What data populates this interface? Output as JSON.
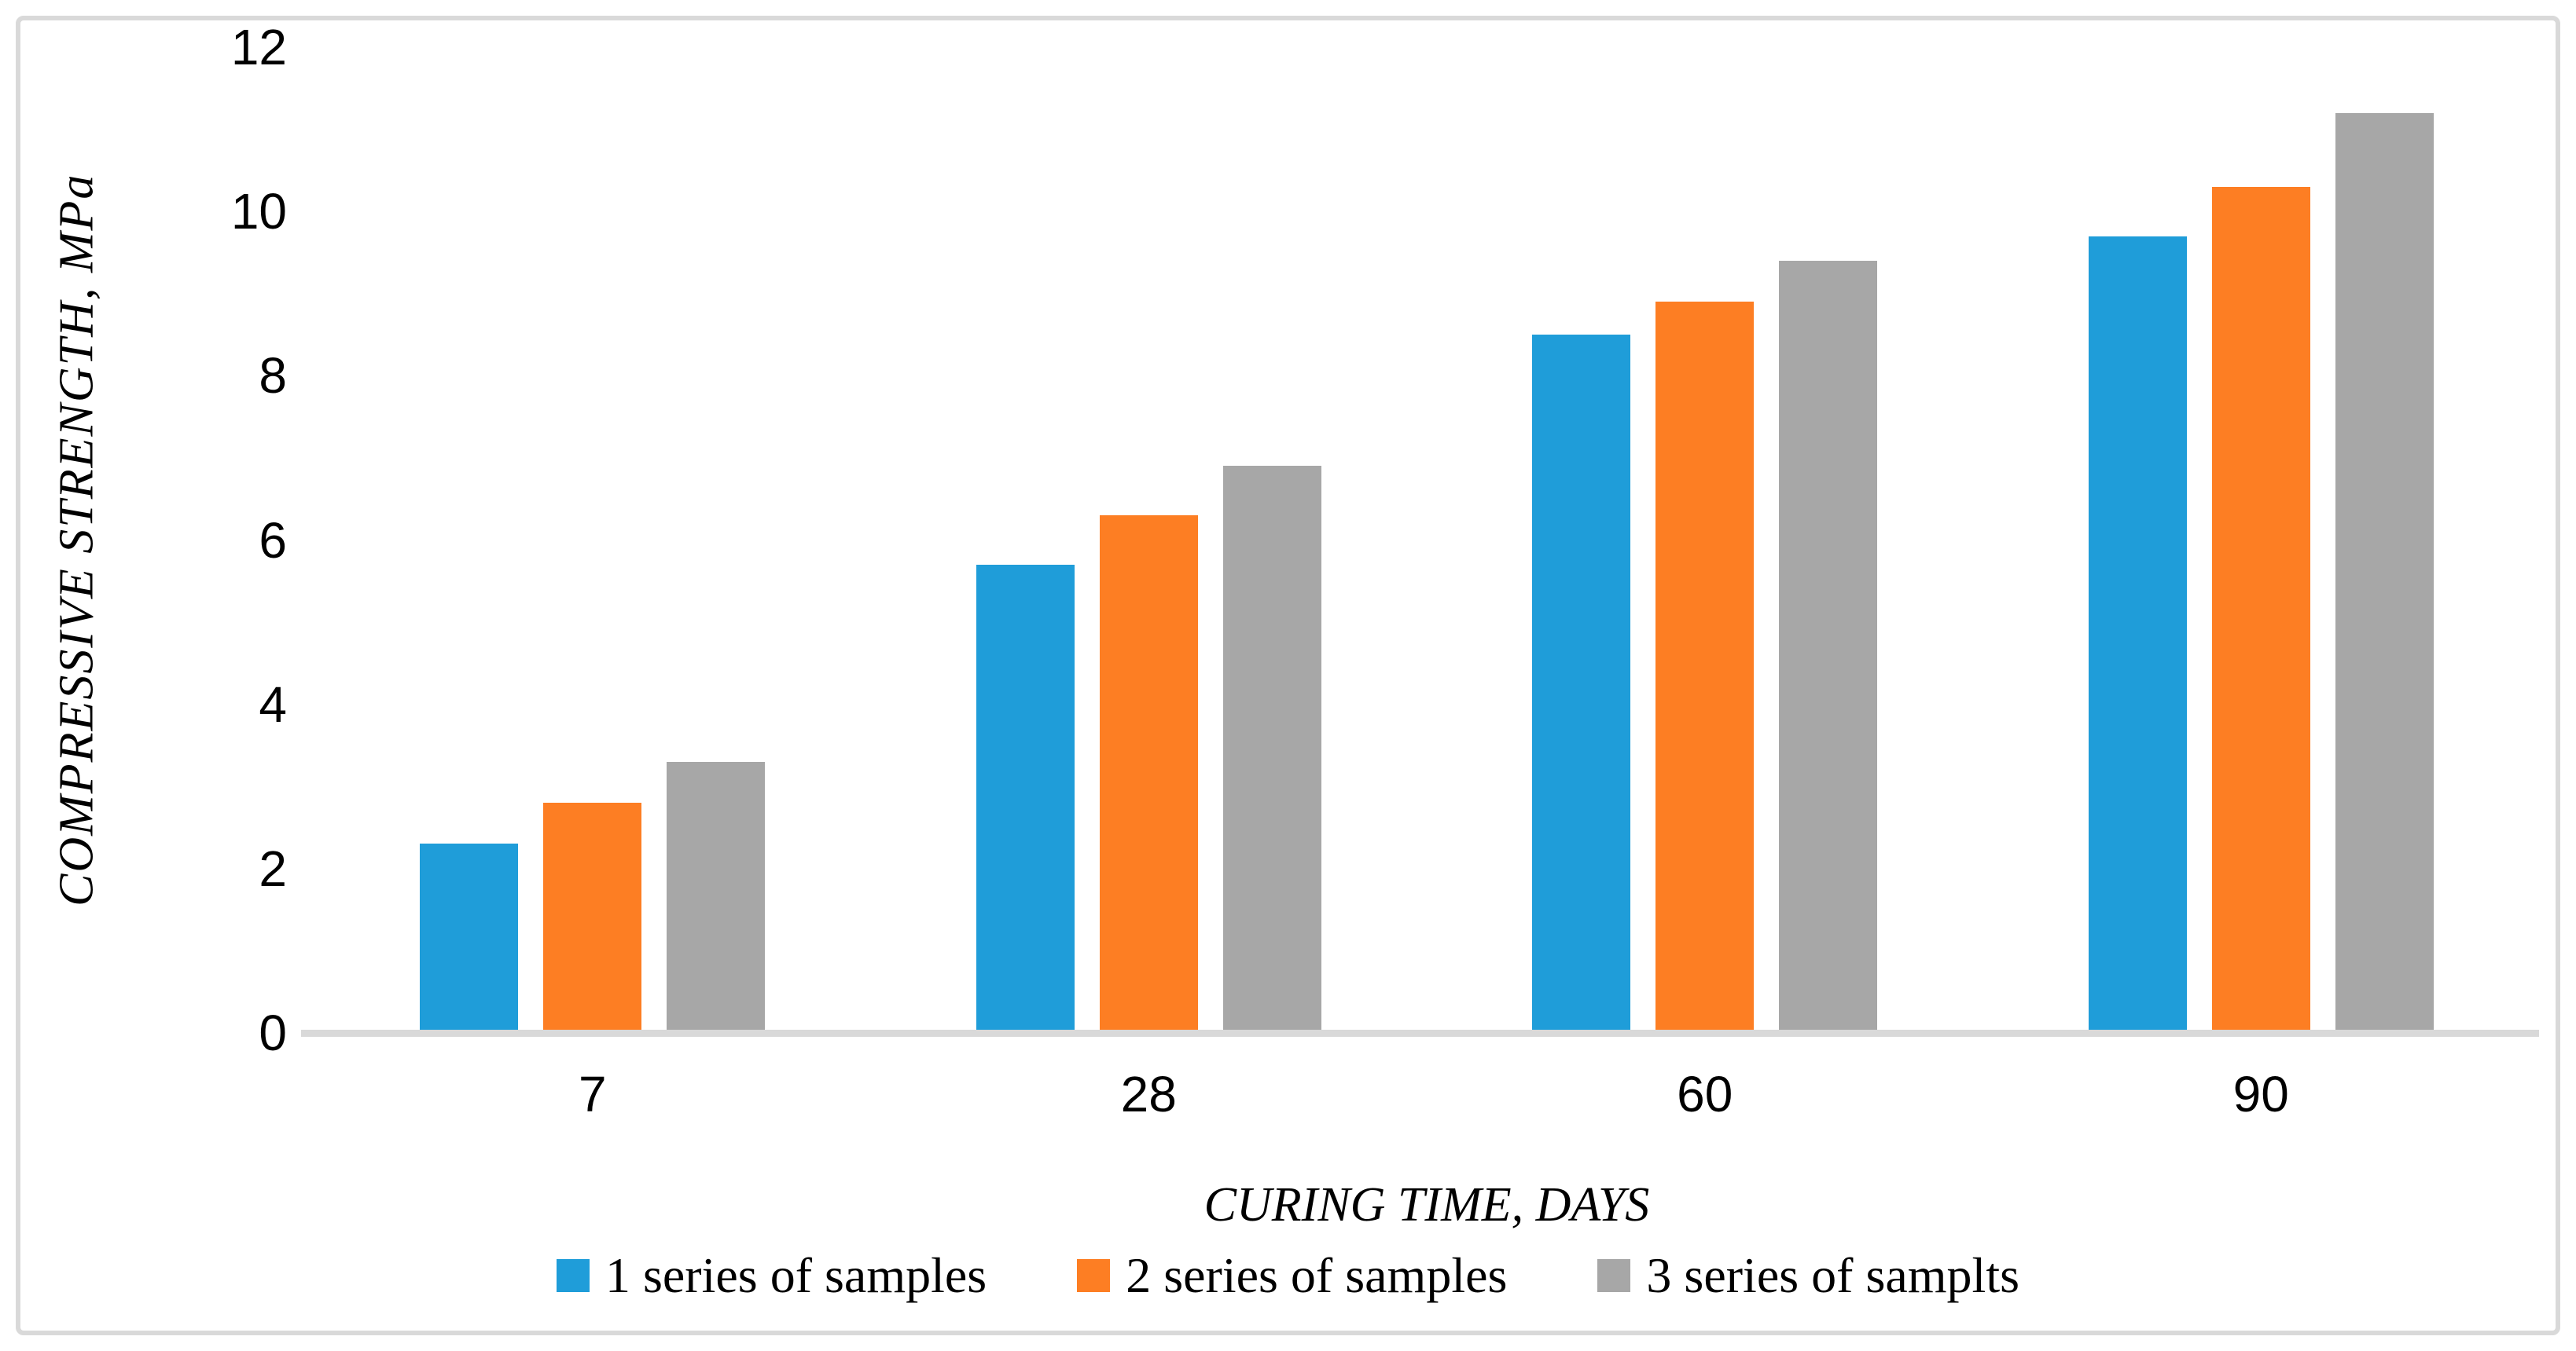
{
  "chart_data": {
    "type": "bar",
    "categories": [
      "7",
      "28",
      "60",
      "90"
    ],
    "series": [
      {
        "name": "1 series of samples",
        "color": "#1F9DD9",
        "values": [
          2.3,
          5.7,
          8.5,
          9.7
        ]
      },
      {
        "name": "2 series of samples",
        "color": "#FD7E23",
        "values": [
          2.8,
          6.3,
          8.9,
          10.3
        ]
      },
      {
        "name": "3 series of samplts",
        "color": "#A7A7A7",
        "values": [
          3.3,
          6.9,
          9.4,
          11.2
        ]
      }
    ],
    "title": "",
    "xlabel": "CURING TIME, DAYS",
    "ylabel": "COMPRESSIVE STRENGTH, MPa",
    "ylim": [
      0,
      12
    ],
    "ytick_step": 2,
    "yticks": [
      0,
      2,
      4,
      6,
      8,
      10,
      12
    ],
    "grid": false,
    "legend_position": "bottom",
    "axis_line_color": "#D9D9D9",
    "frame_color": "#D9D9D9",
    "plot_background": "#FFFFFF"
  }
}
